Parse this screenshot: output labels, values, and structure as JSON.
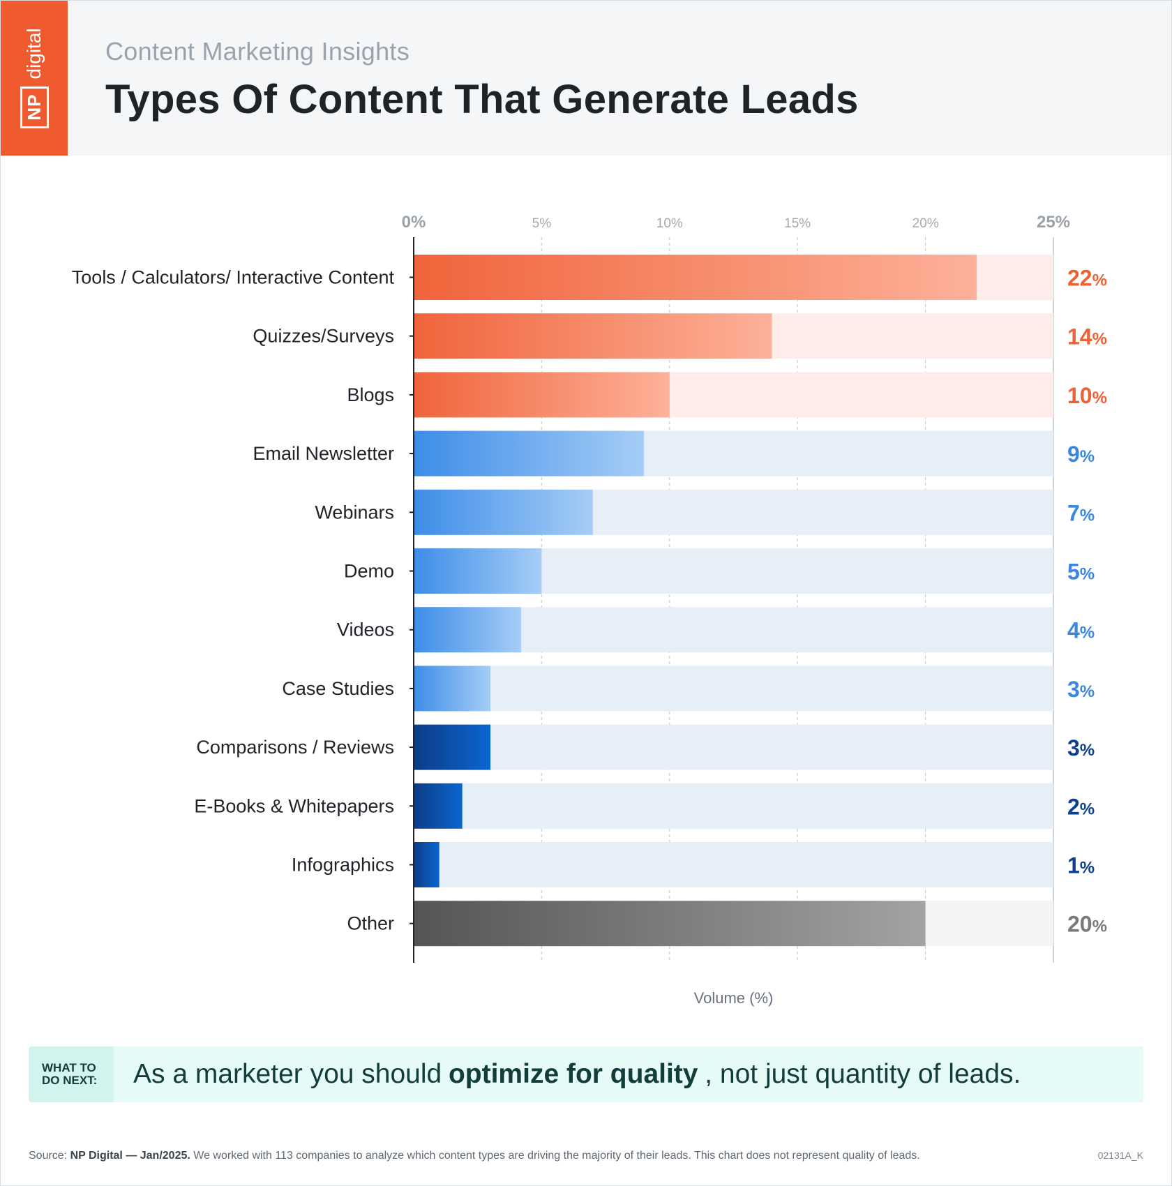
{
  "header": {
    "brand_np": "NP",
    "brand_digital": "digital",
    "subtitle": "Content Marketing Insights",
    "title": "Types Of Content That Generate Leads"
  },
  "chart_data": {
    "type": "bar",
    "orientation": "horizontal",
    "title": "Types Of Content That Generate Leads",
    "xlabel": "Volume (%)",
    "ylabel": "",
    "xlim": [
      0,
      25
    ],
    "xticks": [
      0,
      5,
      10,
      15,
      20,
      25
    ],
    "xtick_labels": [
      "0%",
      "5%",
      "10%",
      "15%",
      "20%",
      "25%"
    ],
    "grid": true,
    "categories": [
      "Tools / Calculators/ Interactive Content",
      "Quizzes/Surveys",
      "Blogs",
      "Email Newsletter",
      "Webinars",
      "Demo",
      "Videos",
      "Case Studies",
      "Comparisons / Reviews",
      "E-Books & Whitepapers",
      "Infographics",
      "Other"
    ],
    "values": [
      22,
      14,
      10,
      9,
      7,
      5,
      4.2,
      3,
      3,
      1.9,
      1,
      20
    ],
    "value_labels": [
      "22",
      "14",
      "10",
      "9",
      "7",
      "5",
      "4",
      "3",
      "3",
      "2",
      "1",
      "20"
    ],
    "value_suffix": "%",
    "groups": [
      "orange",
      "orange",
      "orange",
      "blue",
      "blue",
      "blue",
      "blue",
      "blue",
      "navy",
      "navy",
      "navy",
      "gray"
    ]
  },
  "colors": {
    "orange": {
      "start": "#f0643a",
      "end": "#fdb19a",
      "track": "#fdece7",
      "label": "#ea6235"
    },
    "blue": {
      "start": "#3d8de8",
      "end": "#a6cdf6",
      "track": "#e6eef8",
      "label": "#3b86de"
    },
    "navy": {
      "start": "#0d3b87",
      "end": "#0a66d0",
      "track": "#e6eef8",
      "label": "#0d3f8c"
    },
    "gray": {
      "start": "#555555",
      "end": "#a3a3a3",
      "track": "#f4f4f4",
      "label": "#7a7a7a"
    },
    "accent": "#ef5b2f",
    "callout_bg": "#e6fbf8"
  },
  "callout": {
    "label": "WHAT TO DO NEXT:",
    "text_before": "As a marketer you should",
    "text_bold": "optimize for quality",
    "text_after": ", not just quantity of leads."
  },
  "footer": {
    "source_prefix": "Source:",
    "source_name": "NP Digital — Jan/2025.",
    "source_text": "We worked with 113 companies to analyze which content types are driving the majority of their leads. This chart does not represent quality of leads.",
    "code": "02131A_K"
  }
}
